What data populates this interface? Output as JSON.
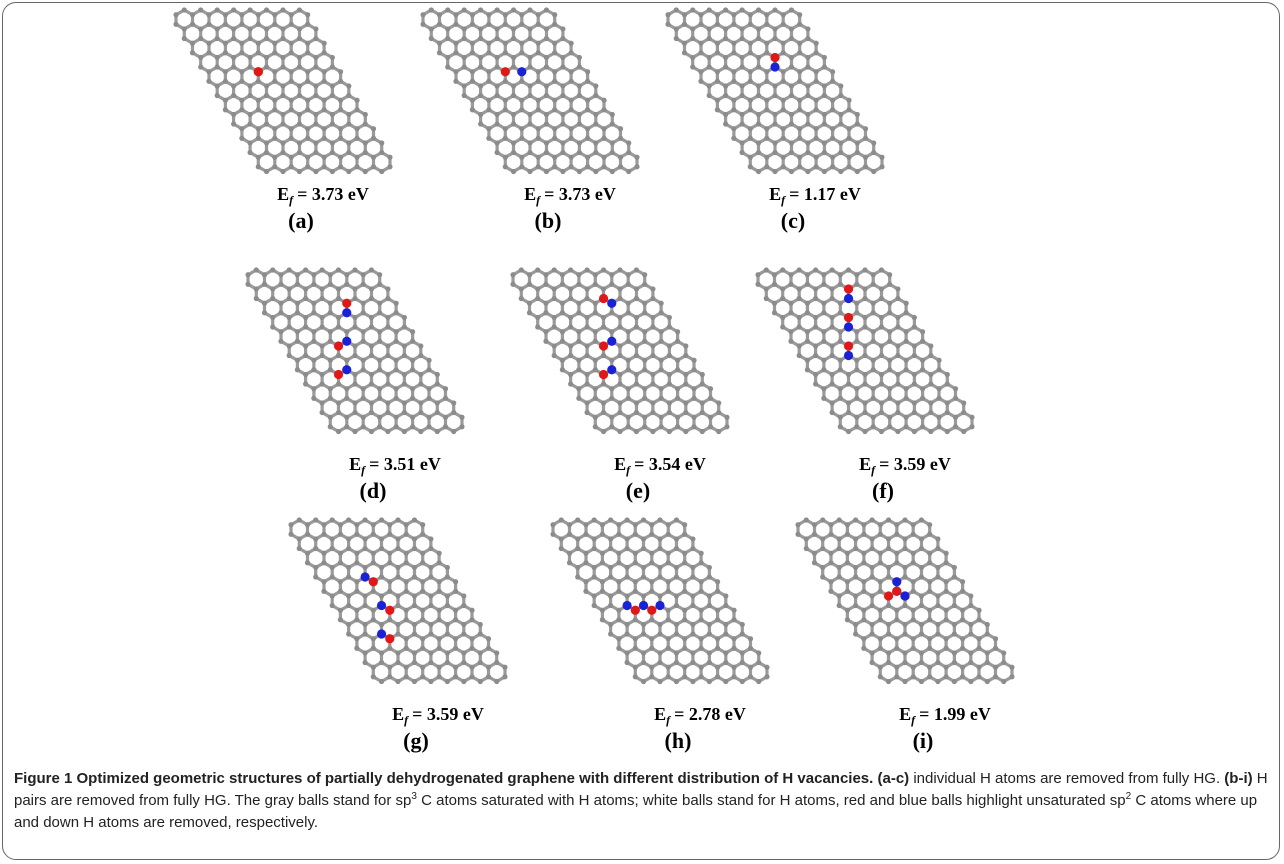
{
  "figure": {
    "panels": [
      {
        "label": "(a)",
        "energy": {
          "symbol": "E",
          "subscript": "f",
          "text": "= 3.73 eV"
        }
      },
      {
        "label": "(b)",
        "energy": {
          "symbol": "E",
          "subscript": "f",
          "text": "= 3.73 eV"
        }
      },
      {
        "label": "(c)",
        "energy": {
          "symbol": "E",
          "subscript": "f",
          "text": "= 1.17 eV"
        }
      },
      {
        "label": "(d)",
        "energy": {
          "symbol": "E",
          "subscript": "f",
          "text": "= 3.51 eV"
        }
      },
      {
        "label": "(e)",
        "energy": {
          "symbol": "E",
          "subscript": "f",
          "text": "= 3.54 eV"
        }
      },
      {
        "label": "(f)",
        "energy": {
          "symbol": "E",
          "subscript": "f",
          "text": "= 3.59 eV"
        }
      },
      {
        "label": "(g)",
        "energy": {
          "symbol": "E",
          "subscript": "f",
          "text": "= 3.59 eV"
        }
      },
      {
        "label": "(h)",
        "energy": {
          "symbol": "E",
          "subscript": "f",
          "text": "= 2.78 eV"
        }
      },
      {
        "label": "(i)",
        "energy": {
          "symbol": "E",
          "subscript": "f",
          "text": "= 1.99 eV"
        }
      }
    ],
    "caption": [
      {
        "text": "Figure 1 Optimized geometric structures of partially dehydrogenated graphene with different distribution of H vacancies.",
        "bold": true
      },
      {
        "text": " (a-c)",
        "bold": true
      },
      {
        "text": " individual H atoms are removed from fully HG."
      },
      {
        "text": " (b-i)",
        "bold": true
      },
      {
        "text": " H pairs are removed from fully HG. The gray balls stand for sp"
      },
      {
        "text": "3",
        "sup": true
      },
      {
        "text": " C atoms saturated with H atoms; white balls stand for H atoms, red and blue balls highlight unsaturated sp"
      },
      {
        "text": "2",
        "sup": true
      },
      {
        "text": " C atoms where up and down H atoms are removed, respectively."
      }
    ]
  }
}
